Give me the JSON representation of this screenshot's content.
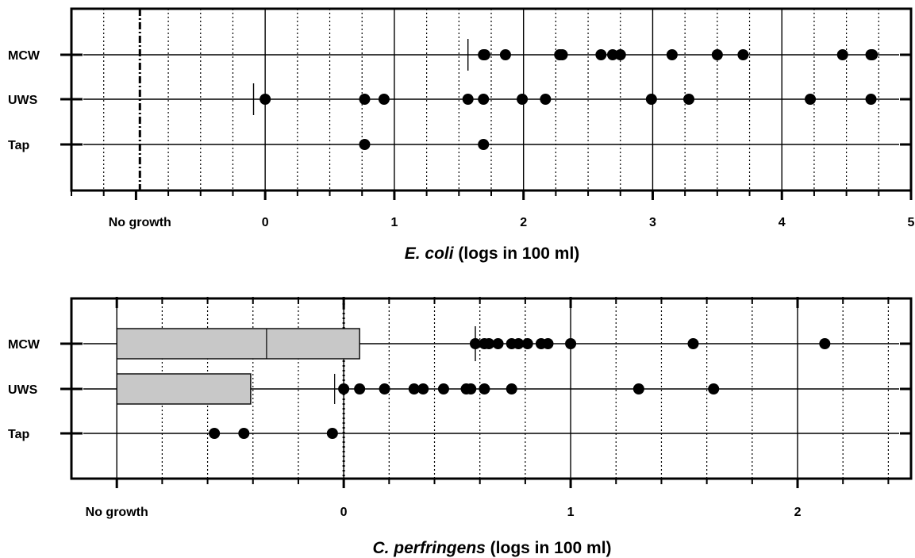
{
  "chart_data": [
    {
      "type": "scatter",
      "xlabel_italic": "E. coli",
      "xlabel_rest": " (logs in 100 ml)",
      "categories": [
        "MCW",
        "UWS",
        "Tap"
      ],
      "x_ticks": [
        {
          "value": -1,
          "label": "No growth"
        },
        {
          "value": 0,
          "label": "0"
        },
        {
          "value": 1,
          "label": "1"
        },
        {
          "value": 2,
          "label": "2"
        },
        {
          "value": 3,
          "label": "3"
        },
        {
          "value": 4,
          "label": "4"
        },
        {
          "value": 5,
          "label": "5"
        }
      ],
      "xlim": [
        -1.5,
        5
      ],
      "no_growth_line": -0.97,
      "grid": true,
      "series": [
        {
          "category": "MCW",
          "median": 1.57,
          "values": [
            1.69,
            1.7,
            1.86,
            2.28,
            2.3,
            2.6,
            2.69,
            2.75,
            3.15,
            3.5,
            3.7,
            4.47,
            4.69,
            4.7
          ]
        },
        {
          "category": "UWS",
          "median": -0.09,
          "values": [
            0.0,
            0.77,
            0.92,
            1.57,
            1.69,
            1.99,
            2.17,
            2.99,
            3.28,
            4.22,
            4.69
          ]
        },
        {
          "category": "Tap",
          "median": null,
          "values": [
            0.77,
            1.69
          ]
        }
      ]
    },
    {
      "type": "box",
      "xlabel_italic": "C. perfringens",
      "xlabel_rest": " (logs in 100 ml)",
      "categories": [
        "MCW",
        "UWS",
        "Tap"
      ],
      "x_ticks": [
        {
          "value": -1,
          "label": "No growth"
        },
        {
          "value": 0,
          "label": "0"
        },
        {
          "value": 1,
          "label": "1"
        },
        {
          "value": 2,
          "label": "2"
        }
      ],
      "xlim": [
        -1.2,
        2.5
      ],
      "no_growth_line": 0,
      "grid": true,
      "series": [
        {
          "category": "MCW",
          "box": [
            -1,
            0.07
          ],
          "median": -0.34,
          "median_tick": 0.58,
          "values": [
            0.58,
            0.62,
            0.64,
            0.68,
            0.74,
            0.77,
            0.81,
            0.87,
            0.9,
            1.0,
            1.54,
            2.12
          ]
        },
        {
          "category": "UWS",
          "box": [
            -1,
            -0.41
          ],
          "median": -0.04,
          "values": [
            0.0,
            0.07,
            0.18,
            0.31,
            0.35,
            0.44,
            0.54,
            0.56,
            0.62,
            0.74,
            1.3,
            1.63
          ]
        },
        {
          "category": "Tap",
          "box": null,
          "median": null,
          "values": [
            -0.57,
            -0.44,
            -0.05
          ]
        }
      ]
    }
  ]
}
